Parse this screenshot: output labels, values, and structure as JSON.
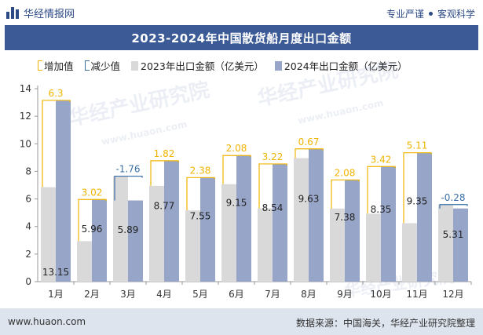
{
  "header": {
    "brand": "华经情报网",
    "tag1": "专业严谨",
    "tag2": "客观科学"
  },
  "title": "2023-2024年中国散货船月度出口金额",
  "legend": {
    "increase": "增加值",
    "decrease": "减少值",
    "s2023": "2023年出口金额（亿美元）",
    "s2024": "2024年出口金额（亿美元）"
  },
  "watermark": "华经产业研究院",
  "watermark_url": "www.huaon.com",
  "footer": {
    "left": "www.huaon.com",
    "right": "数据来源：中国海关，华经产业研究院整理"
  },
  "colors": {
    "s2023": "#d9d9d9",
    "s2024": "#97a6c8",
    "increase": "#f0b400",
    "decrease": "#3a6ea5",
    "title_bg": "#3b5a96"
  },
  "chart_data": {
    "type": "bar",
    "categories": [
      "1月",
      "2月",
      "3月",
      "4月",
      "5月",
      "6月",
      "7月",
      "8月",
      "9月",
      "10月",
      "11月",
      "12月"
    ],
    "series": [
      {
        "name": "2023年出口金额（亿美元）",
        "values": [
          6.85,
          2.94,
          7.65,
          6.95,
          5.17,
          7.07,
          5.32,
          8.96,
          5.3,
          4.93,
          4.24,
          5.59
        ]
      },
      {
        "name": "2024年出口金额（亿美元）",
        "values": [
          13.15,
          5.96,
          5.89,
          8.77,
          7.55,
          9.15,
          8.54,
          9.63,
          7.38,
          8.35,
          9.35,
          5.31
        ]
      }
    ],
    "change": [
      6.3,
      3.02,
      -1.76,
      1.82,
      2.38,
      2.08,
      3.22,
      0.67,
      2.08,
      3.42,
      5.11,
      -0.28
    ],
    "change_labels": [
      "6.3",
      "3.02",
      "-1.76",
      "1.82",
      "2.38",
      "2.08",
      "3.22",
      "0.67",
      "2.08",
      "3.42",
      "5.11",
      "-0.28"
    ],
    "value_labels_2024": [
      "13.15",
      "5.96",
      "5.89",
      "8.77",
      "7.55",
      "9.15",
      "8.54",
      "9.63",
      "7.38",
      "8.35",
      "9.35",
      "5.31"
    ],
    "yticks": [
      0,
      2,
      4,
      6,
      8,
      10,
      12,
      14
    ],
    "ylim": [
      0,
      14
    ],
    "grid": false,
    "legend_position": "top"
  }
}
